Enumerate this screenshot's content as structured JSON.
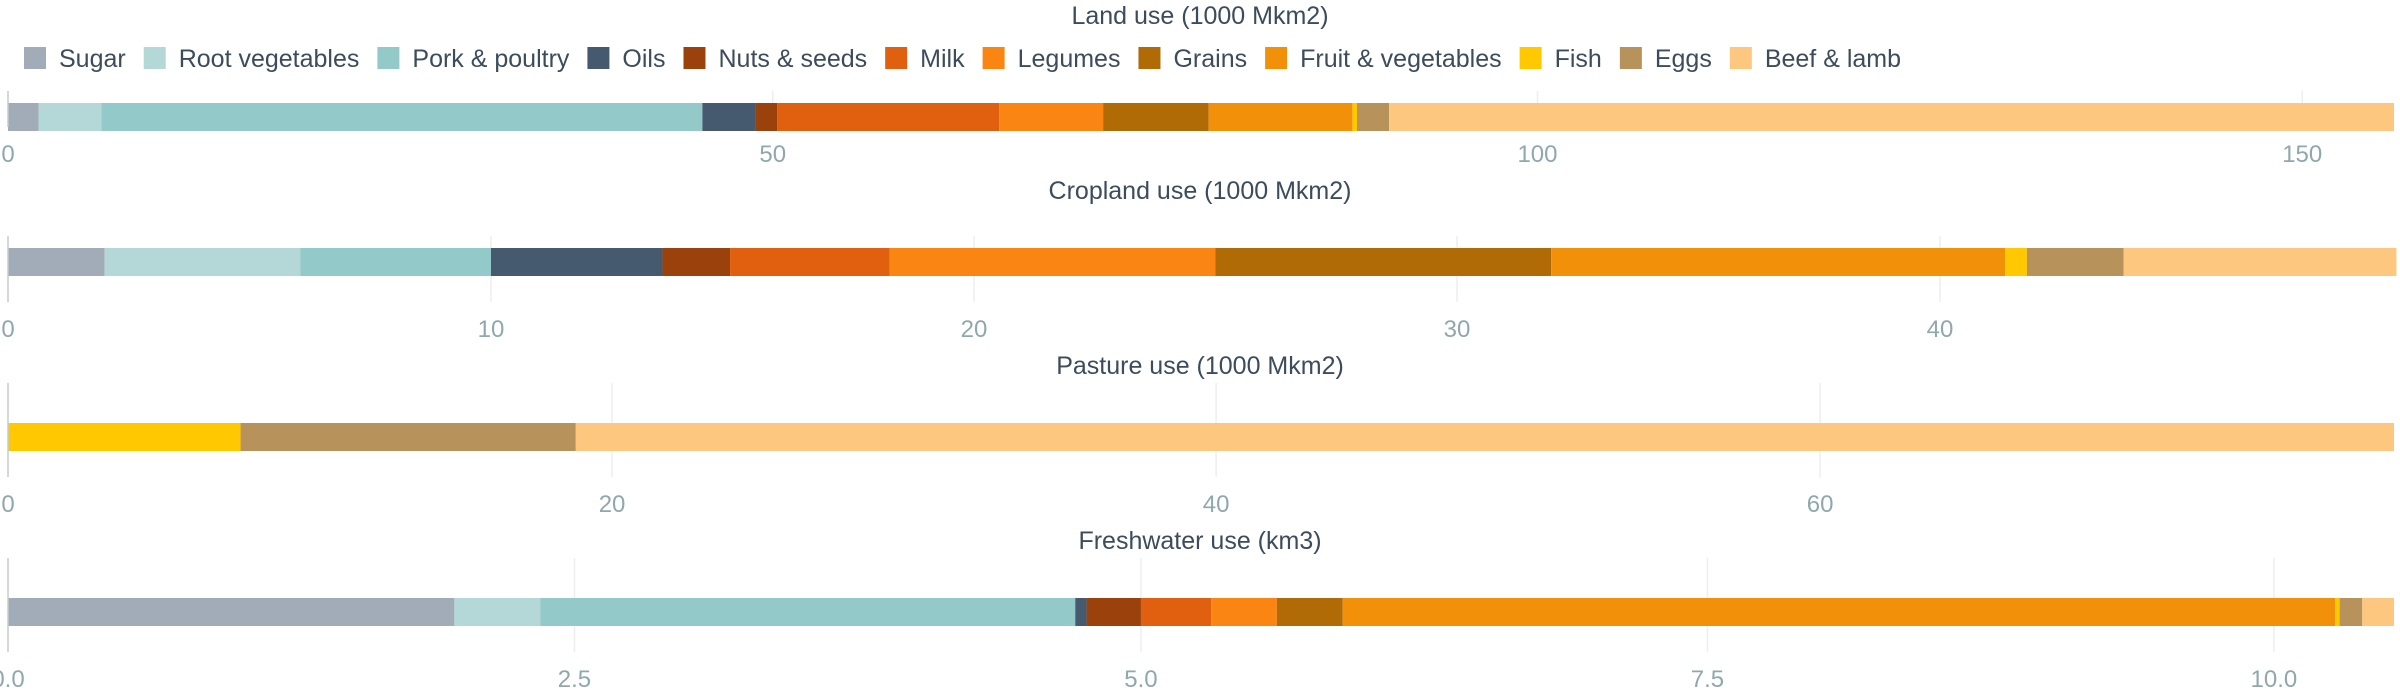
{
  "legend": [
    {
      "name": "Sugar",
      "color": "#a2acb8"
    },
    {
      "name": "Root vegetables",
      "color": "#b3d8d7"
    },
    {
      "name": "Pork & poultry",
      "color": "#93c9c8"
    },
    {
      "name": "Oils",
      "color": "#455a6e"
    },
    {
      "name": "Nuts & seeds",
      "color": "#9b420c"
    },
    {
      "name": "Milk",
      "color": "#e0600f"
    },
    {
      "name": "Legumes",
      "color": "#fb8512"
    },
    {
      "name": "Grains",
      "color": "#b06a06"
    },
    {
      "name": "Fruit & vegetables",
      "color": "#f2900a"
    },
    {
      "name": "Fish",
      "color": "#ffc800"
    },
    {
      "name": "Eggs",
      "color": "#b8925b"
    },
    {
      "name": "Beef & lamb",
      "color": "#fdc77f"
    }
  ],
  "chart_data": [
    {
      "type": "bar",
      "orientation": "horizontal-stacked",
      "title": "Land use (1000 Mkm2)",
      "xlim": [
        0,
        156
      ],
      "ticks": [
        0,
        50,
        100,
        150
      ],
      "tick_labels": [
        "0",
        "50",
        "100",
        "150"
      ],
      "series": [
        {
          "name": "Sugar",
          "value": 2.0
        },
        {
          "name": "Root vegetables",
          "value": 4.1
        },
        {
          "name": "Pork & poultry",
          "value": 39.3
        },
        {
          "name": "Oils",
          "value": 3.5
        },
        {
          "name": "Nuts & seeds",
          "value": 1.4
        },
        {
          "name": "Milk",
          "value": 14.5
        },
        {
          "name": "Legumes",
          "value": 6.8
        },
        {
          "name": "Grains",
          "value": 6.9
        },
        {
          "name": "Fruit & vegetables",
          "value": 9.4
        },
        {
          "name": "Fish",
          "value": 0.3
        },
        {
          "name": "Eggs",
          "value": 2.1
        },
        {
          "name": "Beef & lamb",
          "value": 65.7
        }
      ]
    },
    {
      "type": "bar",
      "orientation": "horizontal-stacked",
      "title": "Cropland use (1000 Mkm2)",
      "xlim": [
        0,
        49.4
      ],
      "ticks": [
        0,
        10,
        20,
        30,
        40
      ],
      "tick_labels": [
        "0",
        "10",
        "20",
        "30",
        "40"
      ],
      "series": [
        {
          "name": "Sugar",
          "value": 2.0
        },
        {
          "name": "Root vegetables",
          "value": 4.05
        },
        {
          "name": "Pork & poultry",
          "value": 3.95
        },
        {
          "name": "Oils",
          "value": 3.55
        },
        {
          "name": "Nuts & seeds",
          "value": 1.4
        },
        {
          "name": "Milk",
          "value": 3.3
        },
        {
          "name": "Legumes",
          "value": 6.75
        },
        {
          "name": "Grains",
          "value": 6.95
        },
        {
          "name": "Fruit & vegetables",
          "value": 9.4
        },
        {
          "name": "Fish",
          "value": 0.45
        },
        {
          "name": "Eggs",
          "value": 2.0
        },
        {
          "name": "Beef & lamb",
          "value": 5.65
        }
      ]
    },
    {
      "type": "bar",
      "orientation": "horizontal-stacked",
      "title": "Pasture use (1000 Mkm2)",
      "xlim": [
        0,
        79
      ],
      "ticks": [
        0,
        20,
        40,
        60
      ],
      "tick_labels": [
        "0",
        "20",
        "40",
        "60"
      ],
      "series": [
        {
          "name": "Fish",
          "value": 7.7
        },
        {
          "name": "Eggs",
          "value": 11.1
        },
        {
          "name": "Beef & lamb",
          "value": 60.2
        }
      ]
    },
    {
      "type": "bar",
      "orientation": "horizontal-stacked",
      "title": "Freshwater use (km3)",
      "xlim": [
        0,
        10.53
      ],
      "ticks": [
        0,
        2.5,
        5,
        7.5,
        10
      ],
      "tick_labels": [
        "0.0",
        "2.5",
        "5.0",
        "7.5",
        "10.0"
      ],
      "series": [
        {
          "name": "Sugar",
          "value": 1.97
        },
        {
          "name": "Root vegetables",
          "value": 0.38
        },
        {
          "name": "Pork & poultry",
          "value": 2.36
        },
        {
          "name": "Oils",
          "value": 0.05
        },
        {
          "name": "Nuts & seeds",
          "value": 0.24
        },
        {
          "name": "Milk",
          "value": 0.31
        },
        {
          "name": "Legumes",
          "value": 0.29
        },
        {
          "name": "Grains",
          "value": 0.29
        },
        {
          "name": "Fruit & vegetables",
          "value": 4.38
        },
        {
          "name": "Fish",
          "value": 0.02
        },
        {
          "name": "Eggs",
          "value": 0.1
        },
        {
          "name": "Beef & lamb",
          "value": 0.14
        }
      ]
    }
  ]
}
